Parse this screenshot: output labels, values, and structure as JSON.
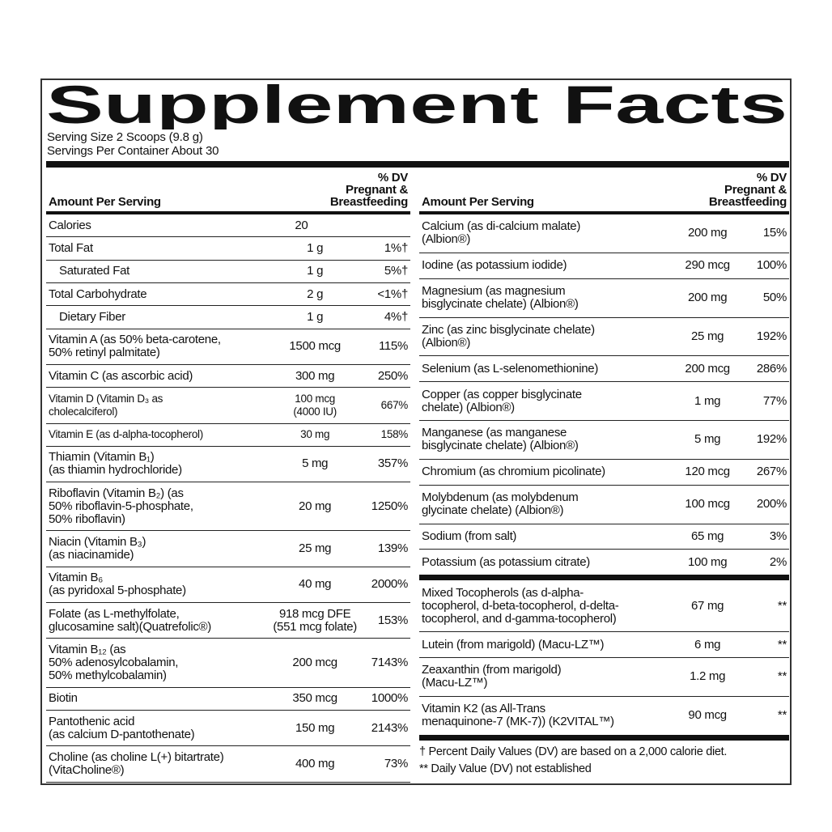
{
  "title": "Supplement Facts",
  "serving_size": "Serving Size 2 Scoops (9.8 g)",
  "servings_per_container": "Servings Per Container About 30",
  "left": {
    "header": {
      "amount": "Amount Per Serving",
      "dv": [
        "% DV",
        "Pregnant &",
        "Breastfeeding"
      ]
    },
    "rows": [
      [
        "Calories",
        "20"
      ],
      [
        "Total Fat",
        "1 g",
        "1%†"
      ],
      [
        "Saturated Fat",
        "1 g",
        "5%†"
      ],
      [
        "Total Carbohydrate",
        "2 g",
        "<1%†"
      ],
      [
        "Dietary Fiber",
        "1 g",
        "4%†"
      ],
      [
        "Vitamin A (as 50% beta-carotene,\n50% retinyl palmitate)",
        "1500 mcg",
        "115%"
      ],
      [
        "Vitamin C (as ascorbic acid)",
        "300 mg",
        "250%"
      ],
      [
        "Vitamin D (Vitamin D₃ as\ncholecalciferol)",
        "100 mcg\n(4000 IU)",
        "667%"
      ],
      [
        "Vitamin E (as d-alpha-tocopherol)",
        "30 mg",
        "158%"
      ],
      [
        "Thiamin (Vitamin B₁)\n(as thiamin hydrochloride)",
        "5 mg",
        "357%"
      ],
      [
        "Riboflavin (Vitamin B₂) (as\n50% riboflavin-5-phosphate,\n50% riboflavin)",
        "20 mg",
        "1250%"
      ],
      [
        "Niacin (Vitamin B₃)\n(as niacinamide)",
        "25 mg",
        "139%"
      ],
      [
        "Vitamin B₆\n(as pyridoxal 5-phosphate)",
        "40 mg",
        "2000%"
      ],
      [
        "Folate (as L-methylfolate,\nglucosamine salt)(Quatrefolic®)",
        "918 mcg DFE\n(551 mcg folate)",
        "153%"
      ],
      [
        "Vitamin B₁₂ (as\n50% adenosylcobalamin,\n50% methylcobalamin)",
        "200 mcg",
        "7143%"
      ],
      [
        "Biotin",
        "350 mcg",
        "1000%"
      ],
      [
        "Pantothenic acid\n(as calcium D-pantothenate)",
        "150 mg",
        "2143%"
      ],
      [
        "Choline (as choline L(+) bitartrate)\n(VitaCholine®)",
        "400 mg",
        "73%"
      ]
    ]
  },
  "right": {
    "header": {
      "amount": "Amount Per Serving",
      "dv": [
        "% DV",
        "Pregnant &",
        "Breastfeeding"
      ]
    },
    "rows": [
      [
        "Calcium (as di-calcium malate)\n(Albion®)",
        "200 mg",
        "15%"
      ],
      [
        "Iodine (as potassium iodide)",
        "290 mcg",
        "100%"
      ],
      [
        "Magnesium (as magnesium\nbisglycinate chelate) (Albion®)",
        "200 mg",
        "50%"
      ],
      [
        "Zinc (as zinc bisglycinate chelate)\n(Albion®)",
        "25 mg",
        "192%"
      ],
      [
        "Selenium (as L-selenomethionine)",
        "200 mcg",
        "286%"
      ],
      [
        "Copper (as copper bisglycinate\nchelate) (Albion®)",
        "1 mg",
        "77%"
      ],
      [
        "Manganese (as manganese\nbisglycinate chelate) (Albion®)",
        "5 mg",
        "192%"
      ],
      [
        "Chromium (as chromium picolinate)",
        "120 mcg",
        "267%"
      ],
      [
        "Molybdenum (as molybdenum\nglycinate chelate) (Albion®)",
        "100 mcg",
        "200%"
      ],
      [
        "Sodium (from salt)",
        "65 mg",
        "3%"
      ],
      [
        "Potassium (as potassium citrate)",
        "100 mg",
        "2%"
      ]
    ],
    "rows2": [
      [
        "Mixed Tocopherols (as d-alpha-\ntocopherol, d-beta-tocopherol, d-delta-\ntocopherol, and d-gamma-tocopherol)",
        "67 mg",
        "**"
      ],
      [
        "Lutein (from marigold) (Macu-LZ™)",
        "6 mg",
        "**"
      ],
      [
        "Zeaxanthin (from marigold)\n(Macu-LZ™)",
        "1.2 mg",
        "**"
      ],
      [
        "Vitamin K2 (as All-Trans\nmenaquinone-7 (MK-7)) (K2VITAL™)",
        "90 mcg",
        "**"
      ]
    ]
  },
  "footnotes": [
    "† Percent Daily Values (DV) are based on a 2,000 calorie diet.",
    "** Daily Value (DV) not established"
  ]
}
